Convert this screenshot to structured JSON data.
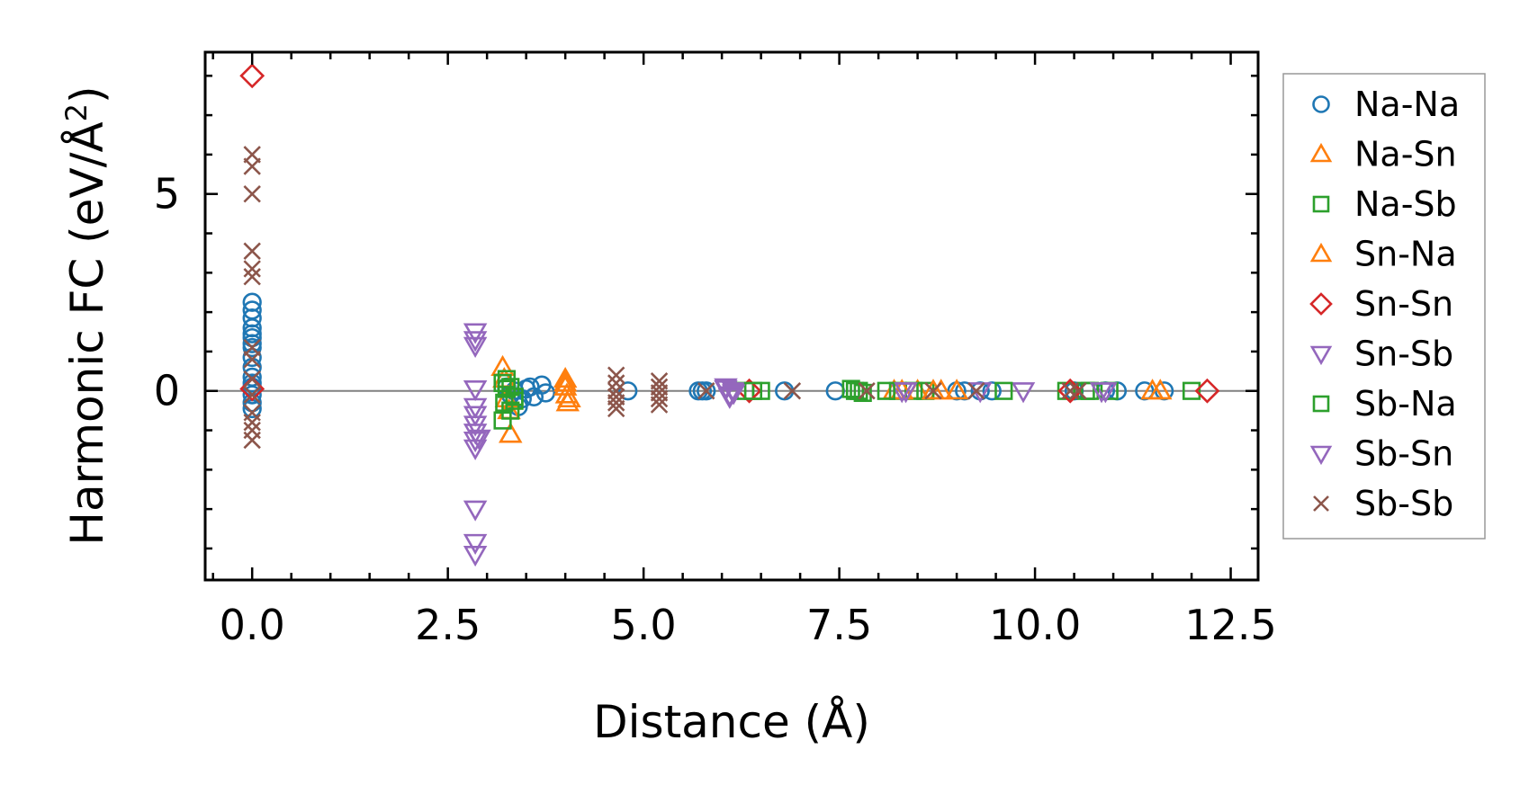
{
  "chart_data": {
    "type": "scatter",
    "title": "",
    "xlabel": "Distance (Å)",
    "ylabel_main": "Harmonic FC (eV/Å",
    "ylabel_sup": "2",
    "ylabel_end": ")",
    "xlim": [
      -0.6,
      12.85
    ],
    "ylim": [
      -4.8,
      8.6
    ],
    "xticks": [
      0.0,
      2.5,
      5.0,
      7.5,
      10.0,
      12.5
    ],
    "xtick_labels": [
      "0.0",
      "2.5",
      "5.0",
      "7.5",
      "10.0",
      "12.5"
    ],
    "yticks": [
      0,
      5
    ],
    "ytick_labels": [
      "0",
      "5"
    ],
    "legend_position": "outside-right",
    "zero_line": true,
    "series": [
      {
        "name": "Na-Na",
        "marker": "circle",
        "color": "#1f77b4",
        "x": [
          0,
          0,
          0,
          0,
          0,
          0,
          0,
          0,
          0,
          0,
          0,
          0,
          0,
          0,
          0,
          0,
          3.25,
          3.3,
          3.35,
          3.4,
          3.45,
          3.5,
          3.55,
          3.6,
          3.7,
          3.75,
          4.8,
          5.7,
          5.75,
          5.8,
          6.8,
          7.45,
          9.0,
          9.1,
          9.3,
          9.45,
          10.5,
          10.9,
          11.05,
          11.4,
          11.65
        ],
        "y": [
          2.25,
          2.05,
          1.85,
          1.6,
          1.35,
          1.1,
          0.85,
          0.6,
          0.35,
          0.1,
          -0.1,
          -0.3,
          -0.45,
          0.2,
          1.45,
          1.2,
          0.1,
          -0.1,
          0.0,
          -0.4,
          -0.2,
          0.05,
          0.1,
          -0.15,
          0.15,
          -0.05,
          0.0,
          0.0,
          0.0,
          0.0,
          0.0,
          0.0,
          0.0,
          0.0,
          0.0,
          0.0,
          0.0,
          0.0,
          0.0,
          0.0,
          0.0
        ]
      },
      {
        "name": "Na-Sn",
        "marker": "triangle-up",
        "color": "#ff7f0e",
        "x": [
          3.2,
          3.22,
          3.25,
          3.28,
          3.3,
          4.0,
          4.0,
          4.02,
          4.05,
          8.2,
          8.5,
          8.8,
          9.0,
          11.5
        ],
        "y": [
          0.6,
          0.3,
          -0.2,
          -0.5,
          -1.1,
          0.3,
          0.1,
          -0.1,
          -0.2,
          0.0,
          0.0,
          0.0,
          0.0,
          0.0
        ]
      },
      {
        "name": "Na-Sb",
        "marker": "square",
        "color": "#2ca02c",
        "x": [
          3.2,
          3.22,
          3.25,
          3.3,
          3.35,
          3.2,
          3.25,
          6.3,
          6.5,
          7.65,
          7.7,
          7.8,
          8.25,
          8.45,
          8.6,
          10.4,
          10.65,
          10.95,
          12.0
        ],
        "y": [
          0.2,
          -0.3,
          0.05,
          -0.5,
          -0.15,
          -0.75,
          0.3,
          0.0,
          0.0,
          0.05,
          0.0,
          -0.05,
          0.0,
          0.0,
          0.0,
          0.0,
          0.0,
          0.0,
          0.0
        ]
      },
      {
        "name": "Sn-Na",
        "marker": "triangle-up",
        "color": "#ff7f0e",
        "x": [
          4.0,
          4.03,
          8.3,
          8.7,
          11.6
        ],
        "y": [
          0.2,
          -0.3,
          0.0,
          0.0,
          0.0
        ]
      },
      {
        "name": "Sn-Sn",
        "marker": "diamond",
        "color": "#d62728",
        "x": [
          0,
          0,
          6.35,
          10.45,
          12.2
        ],
        "y": [
          8.0,
          0.05,
          0.0,
          0.0,
          0.0
        ]
      },
      {
        "name": "Sn-Sb",
        "marker": "triangle-down",
        "color": "#9467bd",
        "x": [
          2.85,
          2.85,
          2.85,
          2.85,
          2.85,
          2.85,
          2.85,
          2.85,
          2.85,
          2.85,
          2.85,
          2.85,
          2.85,
          2.9,
          6.05,
          6.1,
          6.15,
          8.3,
          9.85,
          10.9
        ],
        "y": [
          1.5,
          1.3,
          1.15,
          0.05,
          -0.4,
          -0.6,
          -0.85,
          -1.05,
          -1.25,
          -1.45,
          -3.0,
          -3.85,
          -4.15,
          -1.2,
          0.05,
          -0.1,
          0.0,
          0.0,
          0.0,
          0.0
        ]
      },
      {
        "name": "Sb-Na",
        "marker": "square",
        "color": "#2ca02c",
        "x": [
          3.3,
          3.35,
          6.4,
          7.75,
          8.1,
          9.6,
          10.7
        ],
        "y": [
          0.1,
          -0.25,
          0.0,
          0.0,
          0.0,
          0.0,
          0.0
        ]
      },
      {
        "name": "Sb-Sn",
        "marker": "triangle-down",
        "color": "#9467bd",
        "x": [
          6.05,
          6.1,
          6.15,
          8.35,
          9.3,
          10.85
        ],
        "y": [
          0.1,
          -0.15,
          -0.05,
          0.0,
          0.0,
          0.0
        ]
      },
      {
        "name": "Sb-Sb",
        "marker": "x",
        "color": "#8c564b",
        "x": [
          0,
          0,
          0,
          0,
          0,
          0,
          0,
          0,
          0,
          0,
          0,
          0,
          0,
          0,
          4.65,
          4.65,
          4.65,
          4.65,
          4.65,
          4.65,
          5.2,
          5.2,
          5.2,
          5.2,
          5.2,
          5.8,
          6.9,
          7.85,
          8.7,
          9.25,
          10.45,
          10.55
        ],
        "y": [
          6.0,
          5.7,
          5.0,
          3.55,
          3.1,
          2.9,
          1.1,
          0.8,
          0.3,
          -0.1,
          -0.55,
          -0.8,
          -1.0,
          -1.25,
          0.4,
          0.2,
          0.0,
          -0.15,
          -0.3,
          -0.45,
          0.25,
          0.1,
          -0.05,
          -0.2,
          -0.35,
          0.0,
          0.0,
          0.0,
          0.0,
          0.0,
          0.0,
          0.0
        ]
      }
    ]
  }
}
